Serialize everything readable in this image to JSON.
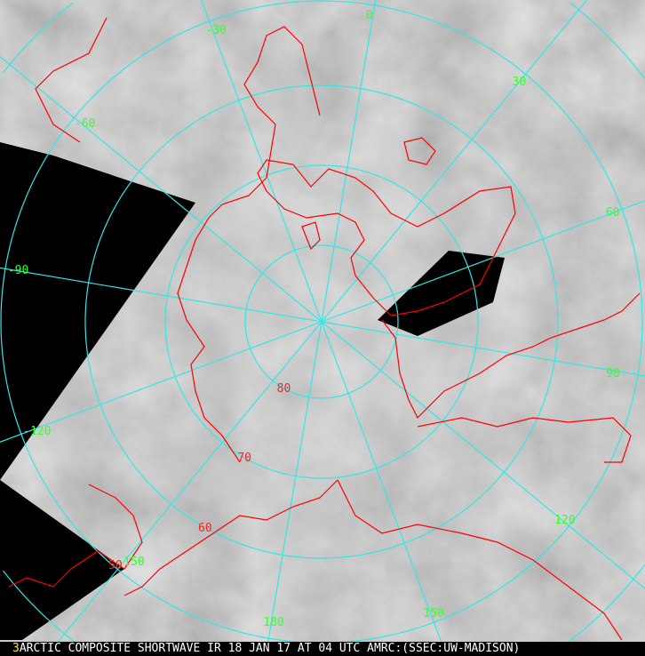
{
  "caption": {
    "frame_number": "3",
    "text": "ARCTIC COMPOSITE SHORTWAVE IR 18 JAN 17 AT 04 UTC AMRC:(SSEC:UW-MADISON)"
  },
  "projection": "polar-stereographic",
  "longitude_labels": [
    "-30",
    "0",
    "30",
    "60",
    "90",
    "120",
    "150",
    "180",
    "-150",
    "-120",
    "-90",
    "-60"
  ],
  "latitude_labels": [
    "80",
    "70",
    "60",
    "50"
  ],
  "colors": {
    "graticule": "#33e6e6",
    "coastline": "#ff0000",
    "longitude_label": "#33ff33",
    "latitude_label": "#ff2020",
    "no_data": "#000000"
  }
}
